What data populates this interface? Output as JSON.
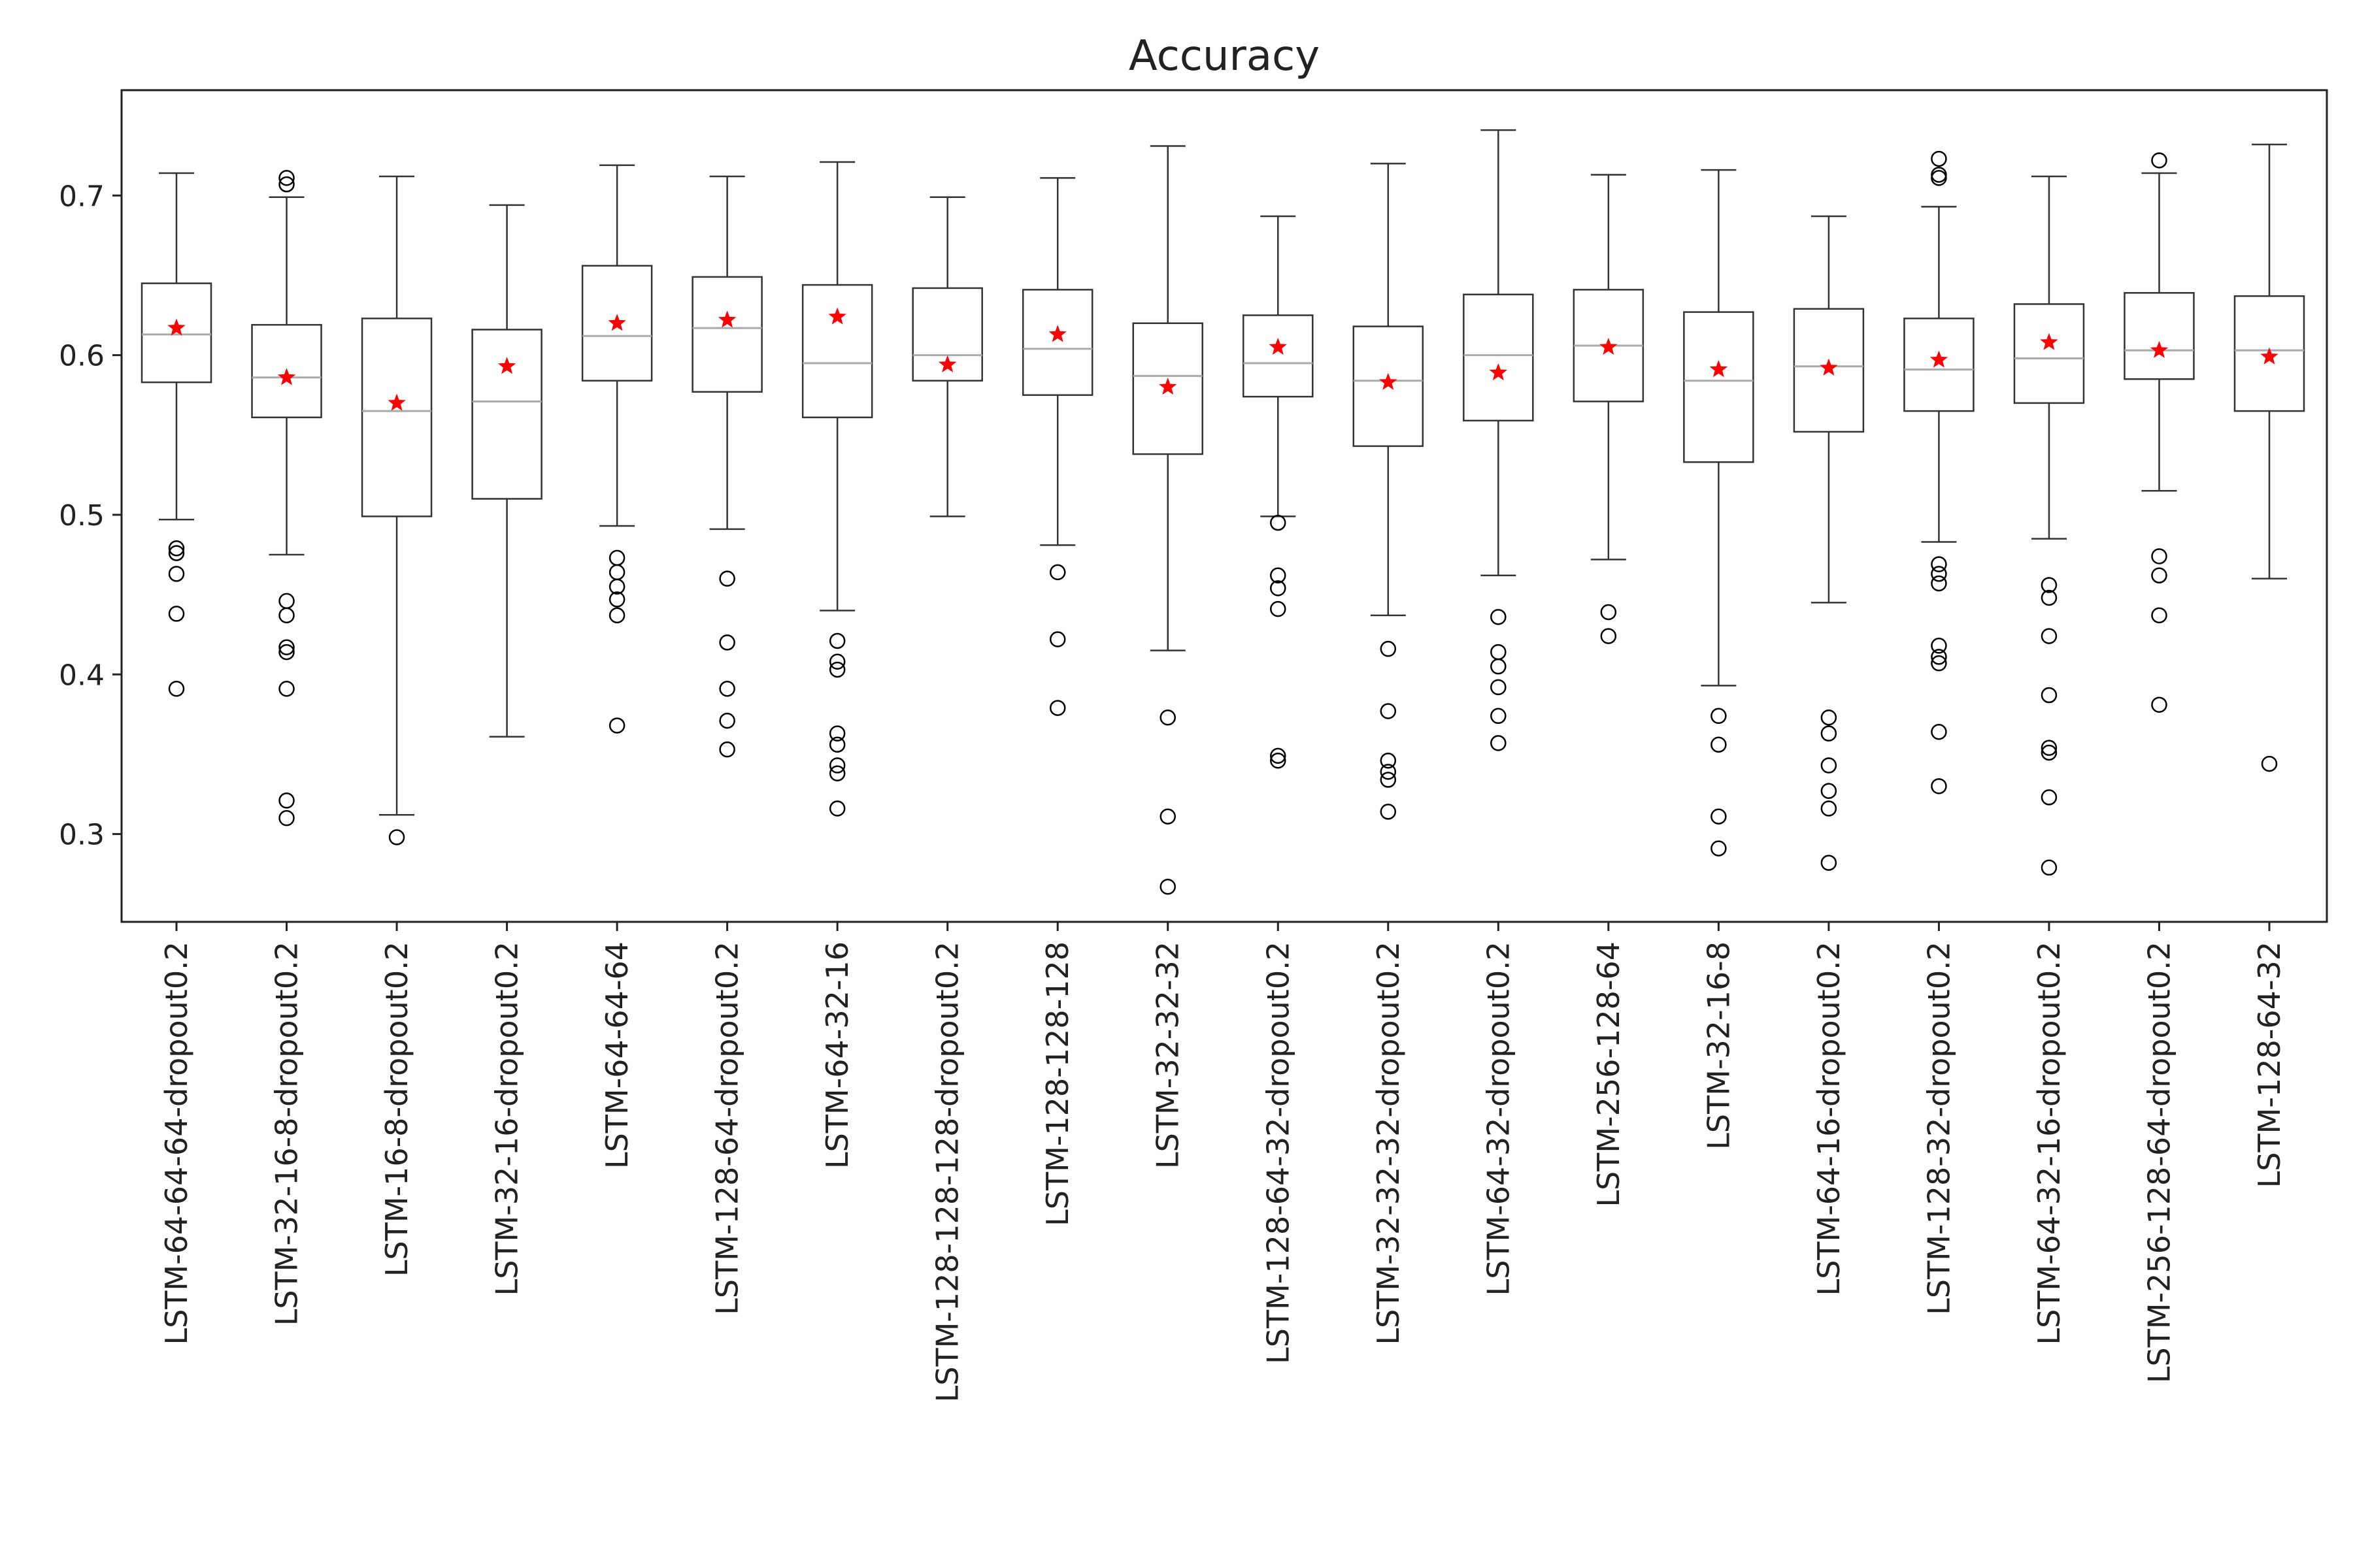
{
  "chart_data": {
    "type": "box",
    "title": "Accuracy",
    "xlabel": "",
    "ylabel": "",
    "ylim": [
      0.245,
      0.766
    ],
    "yticks": [
      0.3,
      0.4,
      0.5,
      0.6,
      0.7
    ],
    "ytick_labels": [
      "0.3",
      "0.4",
      "0.5",
      "0.6",
      "0.7"
    ],
    "grid": false,
    "legend": "none",
    "colors": {
      "box": "#333333",
      "median": "#aaaaaa",
      "mean_marker": "#ff0000",
      "outlier": "#000000"
    },
    "categories": [
      "LSTM-64-64-64-dropout0.2",
      "LSTM-32-16-8-dropout0.2",
      "LSTM-16-8-dropout0.2",
      "LSTM-32-16-dropout0.2",
      "LSTM-64-64-64",
      "LSTM-128-64-dropout0.2",
      "LSTM-64-32-16",
      "LSTM-128-128-128-dropout0.2",
      "LSTM-128-128-128",
      "LSTM-32-32-32",
      "LSTM-128-64-32-dropout0.2",
      "LSTM-32-32-32-dropout0.2",
      "LSTM-64-32-dropout0.2",
      "LSTM-256-128-64",
      "LSTM-32-16-8",
      "LSTM-64-16-dropout0.2",
      "LSTM-128-32-dropout0.2",
      "LSTM-64-32-16-dropout0.2",
      "LSTM-256-128-64-dropout0.2",
      "LSTM-128-64-32"
    ],
    "boxes": [
      {
        "whislo": 0.497,
        "q1": 0.583,
        "med": 0.613,
        "q3": 0.645,
        "whishi": 0.714,
        "mean": 0.617,
        "fliers": [
          0.479,
          0.476,
          0.463,
          0.438,
          0.391
        ]
      },
      {
        "whislo": 0.475,
        "q1": 0.561,
        "med": 0.586,
        "q3": 0.619,
        "whishi": 0.699,
        "mean": 0.586,
        "fliers": [
          0.711,
          0.707,
          0.446,
          0.437,
          0.417,
          0.414,
          0.391,
          0.321,
          0.31
        ]
      },
      {
        "whislo": 0.312,
        "q1": 0.499,
        "med": 0.565,
        "q3": 0.623,
        "whishi": 0.712,
        "mean": 0.57,
        "fliers": [
          0.298
        ]
      },
      {
        "whislo": 0.361,
        "q1": 0.51,
        "med": 0.571,
        "q3": 0.616,
        "whishi": 0.694,
        "mean": 0.593,
        "fliers": []
      },
      {
        "whislo": 0.493,
        "q1": 0.584,
        "med": 0.612,
        "q3": 0.656,
        "whishi": 0.719,
        "mean": 0.62,
        "fliers": [
          0.473,
          0.464,
          0.455,
          0.447,
          0.437,
          0.368
        ]
      },
      {
        "whislo": 0.491,
        "q1": 0.577,
        "med": 0.617,
        "q3": 0.649,
        "whishi": 0.712,
        "mean": 0.622,
        "fliers": [
          0.46,
          0.42,
          0.391,
          0.371,
          0.353
        ]
      },
      {
        "whislo": 0.44,
        "q1": 0.561,
        "med": 0.595,
        "q3": 0.644,
        "whishi": 0.721,
        "mean": 0.624,
        "fliers": [
          0.421,
          0.408,
          0.403,
          0.363,
          0.356,
          0.343,
          0.338,
          0.316
        ]
      },
      {
        "whislo": 0.499,
        "q1": 0.584,
        "med": 0.6,
        "q3": 0.642,
        "whishi": 0.699,
        "mean": 0.594,
        "fliers": []
      },
      {
        "whislo": 0.481,
        "q1": 0.575,
        "med": 0.604,
        "q3": 0.641,
        "whishi": 0.711,
        "mean": 0.613,
        "fliers": [
          0.464,
          0.422,
          0.379
        ]
      },
      {
        "whislo": 0.415,
        "q1": 0.538,
        "med": 0.587,
        "q3": 0.62,
        "whishi": 0.731,
        "mean": 0.58,
        "fliers": [
          0.373,
          0.311,
          0.267
        ]
      },
      {
        "whislo": 0.499,
        "q1": 0.574,
        "med": 0.595,
        "q3": 0.625,
        "whishi": 0.687,
        "mean": 0.605,
        "fliers": [
          0.495,
          0.462,
          0.454,
          0.441,
          0.349,
          0.346
        ]
      },
      {
        "whislo": 0.437,
        "q1": 0.543,
        "med": 0.584,
        "q3": 0.618,
        "whishi": 0.72,
        "mean": 0.583,
        "fliers": [
          0.416,
          0.377,
          0.346,
          0.339,
          0.334,
          0.314
        ]
      },
      {
        "whislo": 0.462,
        "q1": 0.559,
        "med": 0.6,
        "q3": 0.638,
        "whishi": 0.741,
        "mean": 0.589,
        "fliers": [
          0.436,
          0.414,
          0.405,
          0.392,
          0.374,
          0.357
        ]
      },
      {
        "whislo": 0.472,
        "q1": 0.571,
        "med": 0.606,
        "q3": 0.641,
        "whishi": 0.713,
        "mean": 0.605,
        "fliers": [
          0.439,
          0.424
        ]
      },
      {
        "whislo": 0.393,
        "q1": 0.533,
        "med": 0.584,
        "q3": 0.627,
        "whishi": 0.716,
        "mean": 0.591,
        "fliers": [
          0.374,
          0.356,
          0.311,
          0.291
        ]
      },
      {
        "whislo": 0.445,
        "q1": 0.552,
        "med": 0.593,
        "q3": 0.629,
        "whishi": 0.687,
        "mean": 0.592,
        "fliers": [
          0.373,
          0.363,
          0.343,
          0.327,
          0.316,
          0.282
        ]
      },
      {
        "whislo": 0.483,
        "q1": 0.565,
        "med": 0.591,
        "q3": 0.623,
        "whishi": 0.693,
        "mean": 0.597,
        "fliers": [
          0.723,
          0.713,
          0.711,
          0.469,
          0.463,
          0.457,
          0.418,
          0.411,
          0.407,
          0.364,
          0.33
        ]
      },
      {
        "whislo": 0.485,
        "q1": 0.57,
        "med": 0.598,
        "q3": 0.632,
        "whishi": 0.712,
        "mean": 0.608,
        "fliers": [
          0.456,
          0.448,
          0.424,
          0.387,
          0.354,
          0.351,
          0.323,
          0.279
        ]
      },
      {
        "whislo": 0.515,
        "q1": 0.585,
        "med": 0.603,
        "q3": 0.639,
        "whishi": 0.714,
        "mean": 0.603,
        "fliers": [
          0.722,
          0.474,
          0.462,
          0.437,
          0.381
        ]
      },
      {
        "whislo": 0.46,
        "q1": 0.565,
        "med": 0.603,
        "q3": 0.637,
        "whishi": 0.732,
        "mean": 0.599,
        "fliers": [
          0.344
        ]
      }
    ]
  }
}
